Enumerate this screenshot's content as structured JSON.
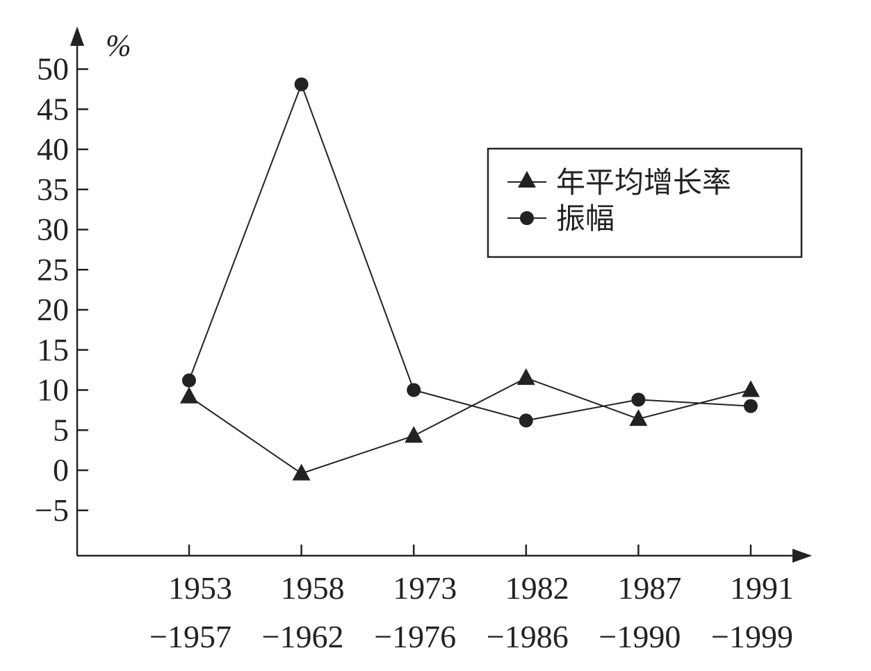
{
  "chart_data": {
    "type": "line",
    "unit_label": "%",
    "y_ticks": [
      -5,
      0,
      5,
      10,
      15,
      20,
      25,
      30,
      35,
      40,
      45,
      50
    ],
    "y_tick_labels": [
      "−5",
      "0",
      "5",
      "10",
      "15",
      "20",
      "25",
      "30",
      "35",
      "40",
      "45",
      "50"
    ],
    "ylim": [
      -10.5,
      53
    ],
    "categories": [
      {
        "line1": "1953",
        "line2": "−1957"
      },
      {
        "line1": "1958",
        "line2": "−1962"
      },
      {
        "line1": "1973",
        "line2": "−1976"
      },
      {
        "line1": "1982",
        "line2": "−1986"
      },
      {
        "line1": "1987",
        "line2": "−1990"
      },
      {
        "line1": "1991",
        "line2": "−1999"
      }
    ],
    "series": [
      {
        "name": "年平均增长率",
        "marker": "triangle",
        "values": [
          9.2,
          -0.4,
          4.3,
          11.5,
          6.4,
          10.0
        ]
      },
      {
        "name": "振幅",
        "marker": "circle",
        "values": [
          11.2,
          48.1,
          10.0,
          6.2,
          8.8,
          8.0
        ]
      }
    ],
    "grid": false,
    "legend_position": "top-right",
    "colors": {
      "ink": "#222222",
      "background": "#ffffff"
    }
  }
}
